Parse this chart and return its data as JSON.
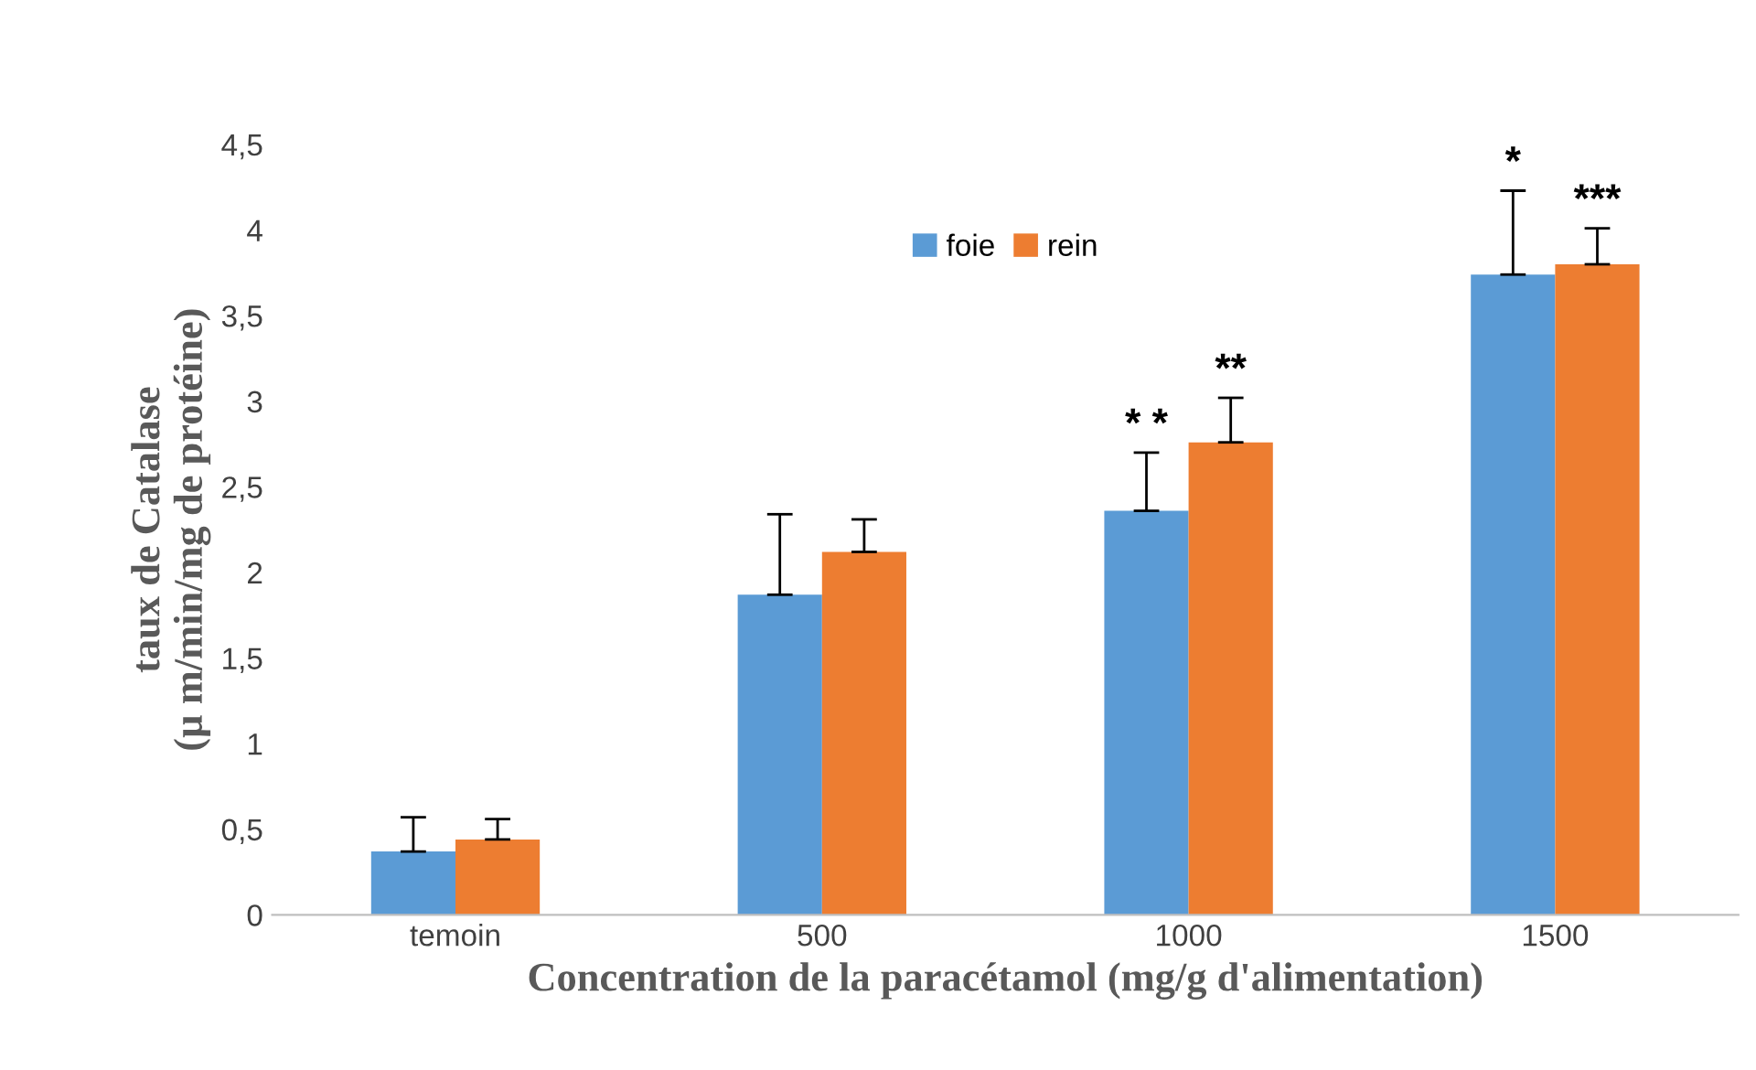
{
  "chart_data": {
    "type": "bar",
    "xlabel": "Concentration de la paracétamol (mg/g d'alimentation)",
    "ylabel": "taux de Catalase\n(µ m/min/mg de protéine)",
    "categories": [
      "temoin",
      "500",
      "1000",
      "1500"
    ],
    "series": [
      {
        "name": "foie",
        "color": "#5b9bd5",
        "values": [
          0.37,
          1.87,
          2.36,
          3.74
        ],
        "errors": [
          [
            0.37,
            0.57
          ],
          [
            1.87,
            2.34
          ],
          [
            2.36,
            2.7
          ],
          [
            3.74,
            4.23
          ]
        ]
      },
      {
        "name": "rein",
        "color": "#ed7d31",
        "values": [
          0.44,
          2.12,
          2.76,
          3.8
        ],
        "errors": [
          [
            0.44,
            0.56
          ],
          [
            2.12,
            2.31
          ],
          [
            2.76,
            3.02
          ],
          [
            3.8,
            4.01
          ]
        ]
      }
    ],
    "ylim": [
      0,
      4.5
    ],
    "yticks": [
      0,
      {
        "value": 0.5,
        "label": "0,5"
      },
      1,
      {
        "value": 1.5,
        "label": "1,5"
      },
      2,
      {
        "value": 2.5,
        "label": "2,5"
      },
      3,
      {
        "value": 3.5,
        "label": "3,5"
      },
      4,
      {
        "value": 4.5,
        "label": "4,5"
      }
    ],
    "annotations": [
      "* *",
      "**",
      "*",
      "***"
    ],
    "grid": false,
    "legend": "top"
  }
}
